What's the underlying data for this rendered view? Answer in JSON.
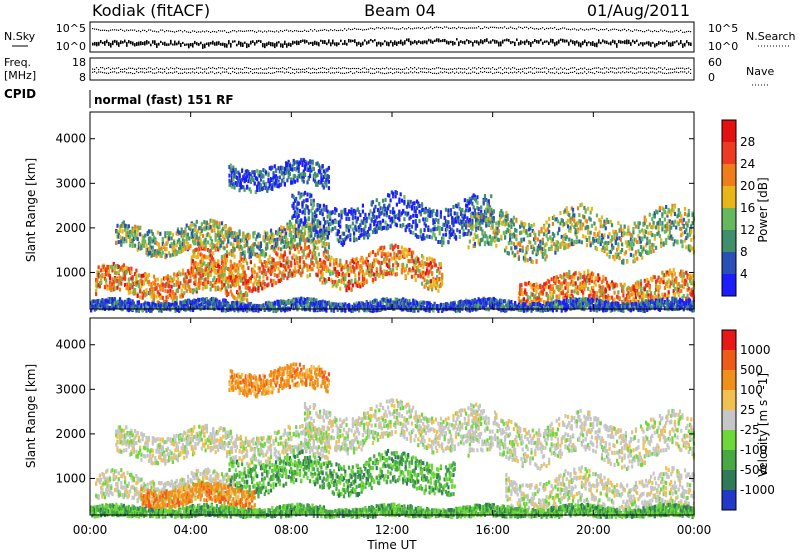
{
  "header": {
    "station": "Kodiak (fitACF)",
    "beam": "Beam 04",
    "date": "01/Aug/2011"
  },
  "strip_panels": {
    "nsky_label": "N.Sky",
    "nsearch_label": "N.Search",
    "freq_label_1": "Freq.",
    "freq_label_2": "[MHz]",
    "nave_label": "Nave",
    "cpid_label": "CPID",
    "noise_ticks_left": [
      "10^5",
      "10^0"
    ],
    "noise_ticks_right": [
      "10^5",
      "10^0"
    ],
    "freq_ticks_left": [
      "18",
      "8"
    ],
    "nave_ticks_right": [
      "60",
      "0"
    ],
    "cpid_text": "normal (fast) 151 RF"
  },
  "chart_data": [
    {
      "type": "heatmap",
      "name": "power",
      "xlabel": "",
      "ylabel": "Slant Range [km]",
      "x_range_hours": [
        0,
        24
      ],
      "ylim": [
        180,
        4600
      ],
      "y_ticks": [
        "1000",
        "2000",
        "3000",
        "4000"
      ],
      "colorbar": {
        "label": "Power [dB]",
        "ticks": [
          "4",
          "8",
          "12",
          "16",
          "20",
          "24",
          "28"
        ],
        "colors": [
          "#1c1cff",
          "#2b4fb8",
          "#3f8e6c",
          "#66b85e",
          "#e9b61a",
          "#f07d1a",
          "#ee3a20",
          "#e51010"
        ]
      },
      "bands": [
        {
          "t_start": 0.2,
          "t_end": 6.2,
          "range_km": 800,
          "width_km": 300,
          "level": "high"
        },
        {
          "t_start": 4.0,
          "t_end": 14.0,
          "range_km": 1150,
          "width_km": 350,
          "level": "high"
        },
        {
          "t_start": 1.0,
          "t_end": 9.5,
          "range_km": 1800,
          "width_km": 280,
          "level": "medium"
        },
        {
          "t_start": 5.5,
          "t_end": 9.5,
          "range_km": 3200,
          "width_km": 250,
          "level": "low"
        },
        {
          "t_start": 8.0,
          "t_end": 16.0,
          "range_km": 2250,
          "width_km": 400,
          "level": "low"
        },
        {
          "t_start": 15.0,
          "t_end": 24.0,
          "range_km": 1900,
          "width_km": 450,
          "level": "medium"
        },
        {
          "t_start": 17.0,
          "t_end": 24.0,
          "range_km": 650,
          "width_km": 300,
          "level": "high"
        },
        {
          "t_start": 0.0,
          "t_end": 24.0,
          "range_km": 280,
          "width_km": 120,
          "level": "low"
        }
      ]
    },
    {
      "type": "heatmap",
      "name": "velocity",
      "xlabel": "Time UT",
      "ylabel": "Slant Range [km]",
      "x_range_hours": [
        0,
        24
      ],
      "ylim": [
        180,
        4600
      ],
      "y_ticks": [
        "1000",
        "2000",
        "3000",
        "4000"
      ],
      "x_ticks": [
        "00:00",
        "04:00",
        "08:00",
        "12:00",
        "16:00",
        "20:00",
        "00:00"
      ],
      "colorbar": {
        "label": "Velocity [m s^-1]",
        "ticks": [
          "1000",
          "500",
          "100",
          "25",
          "-25",
          "-100",
          "-500",
          "-1000"
        ],
        "colors": [
          "#2438c8",
          "#2f7a58",
          "#47a844",
          "#6ed83a",
          "#c6c6c6",
          "#f0c050",
          "#f0901a",
          "#ef5a18",
          "#e81818"
        ]
      },
      "bands": [
        {
          "t_start": 0.2,
          "t_end": 6.0,
          "range_km": 800,
          "width_km": 300,
          "level": "gray"
        },
        {
          "t_start": 5.5,
          "t_end": 14.5,
          "range_km": 1150,
          "width_km": 350,
          "level": "green"
        },
        {
          "t_start": 2.0,
          "t_end": 6.5,
          "range_km": 650,
          "width_km": 200,
          "level": "orange"
        },
        {
          "t_start": 1.0,
          "t_end": 9.5,
          "range_km": 1800,
          "width_km": 300,
          "level": "gray"
        },
        {
          "t_start": 5.5,
          "t_end": 9.5,
          "range_km": 3250,
          "width_km": 250,
          "level": "orange"
        },
        {
          "t_start": 8.5,
          "t_end": 15.5,
          "range_km": 2200,
          "width_km": 400,
          "level": "gray"
        },
        {
          "t_start": 15.0,
          "t_end": 24.0,
          "range_km": 1900,
          "width_km": 450,
          "level": "gray"
        },
        {
          "t_start": 16.5,
          "t_end": 24.0,
          "range_km": 700,
          "width_km": 400,
          "level": "gray"
        },
        {
          "t_start": 0.0,
          "t_end": 24.0,
          "range_km": 280,
          "width_km": 120,
          "level": "green"
        }
      ]
    }
  ]
}
